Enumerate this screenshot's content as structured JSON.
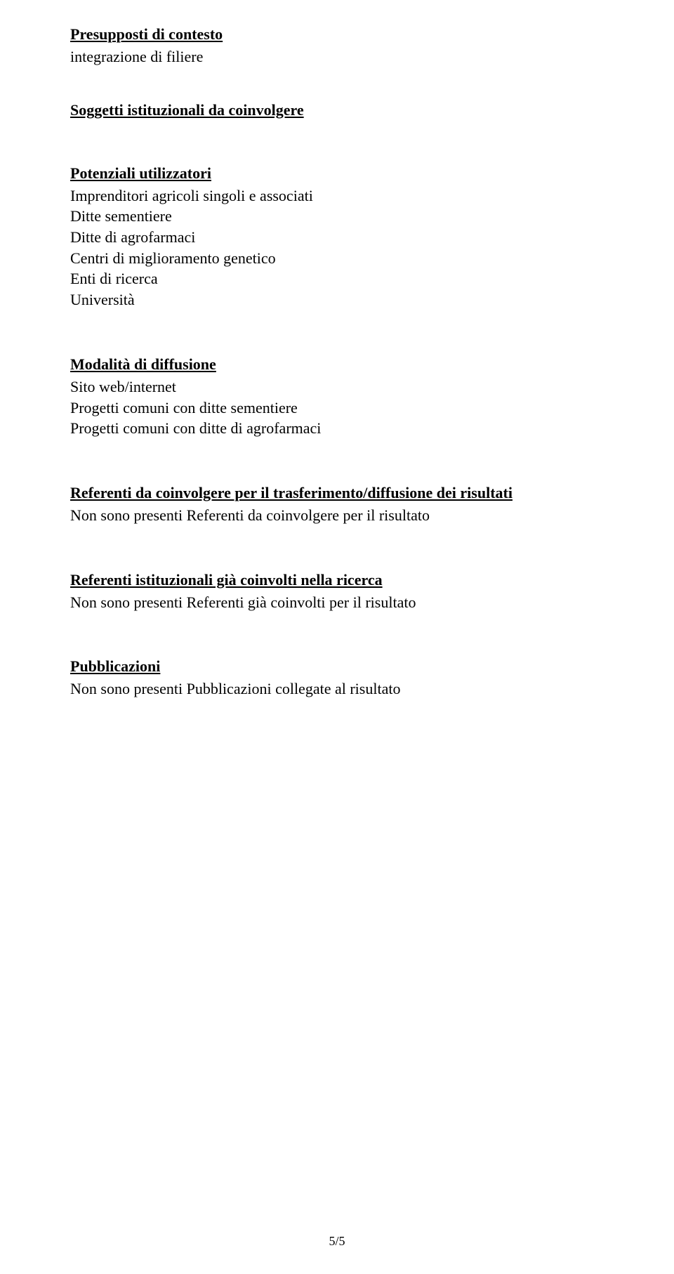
{
  "sections": {
    "presupposti": {
      "heading": "Presupposti di contesto",
      "lines": [
        "integrazione di filiere"
      ]
    },
    "soggetti": {
      "heading": "Soggetti istituzionali da coinvolgere",
      "lines": []
    },
    "utilizzatori": {
      "heading": "Potenziali utilizzatori",
      "lines": [
        "Imprenditori agricoli singoli e associati",
        "Ditte sementiere",
        "Ditte di agrofarmaci",
        "Centri di miglioramento genetico",
        "Enti di ricerca",
        "Università"
      ]
    },
    "diffusione": {
      "heading": "Modalità di diffusione",
      "lines": [
        "Sito web/internet",
        "Progetti comuni con ditte sementiere",
        "Progetti comuni con ditte di agrofarmaci"
      ]
    },
    "referenti_trasferimento": {
      "heading": "Referenti da coinvolgere per il trasferimento/diffusione dei risultati",
      "lines": [
        "Non sono presenti Referenti da coinvolgere per il risultato"
      ]
    },
    "referenti_istituzionali": {
      "heading": "Referenti istituzionali già coinvolti nella ricerca",
      "lines": [
        "Non sono presenti Referenti già coinvolti per il risultato"
      ]
    },
    "pubblicazioni": {
      "heading": "Pubblicazioni",
      "lines": [
        "Non sono presenti Pubblicazioni collegate al risultato"
      ]
    }
  },
  "page_number": "5/5"
}
